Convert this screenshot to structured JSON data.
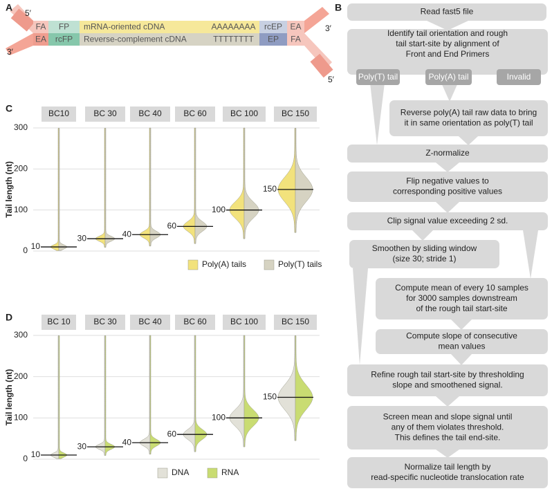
{
  "panel_a": {
    "label": "A",
    "ends": [
      "5′",
      "3′",
      "3′",
      "5′"
    ],
    "strands": [
      {
        "segments": [
          "FA",
          "FP",
          "mRNA-oriented cDNA",
          "AAAAAAAA",
          "rcEP",
          "EA"
        ]
      },
      {
        "segments": [
          "EA",
          "rcFP",
          "Reverse-complement cDNA",
          "TTTTTTTT",
          "EP",
          "FA"
        ]
      }
    ]
  },
  "panel_b": {
    "label": "B",
    "steps": [
      {
        "lines": [
          "Read fast5 file"
        ]
      },
      {
        "lines": [
          "Identify tail orientation and rough",
          "tail start-site by alignment of",
          "Front and End Primers"
        ]
      },
      {
        "lines": [
          "Reverse poly(A) tail raw data to bring",
          "it in same orientation as poly(T) tail"
        ]
      },
      {
        "lines": [
          "Z-normalize"
        ]
      },
      {
        "lines": [
          "Flip negative values to",
          "corresponding positive values"
        ]
      },
      {
        "lines": [
          "Clip signal value exceeding 2 sd."
        ]
      },
      {
        "lines": [
          "Smoothen by sliding window",
          "(size 30; stride 1)"
        ]
      },
      {
        "lines": [
          "Compute mean of every 10 samples",
          "for 3000 samples downstream",
          "of the rough tail start-site"
        ]
      },
      {
        "lines": [
          "Compute slope of consecutive",
          "mean values"
        ]
      },
      {
        "lines": [
          "Refine rough tail start-site by thresholding",
          "slope and smoothened signal."
        ]
      },
      {
        "lines": [
          "Screen mean and slope signal until",
          "any of them violates threshold.",
          "This defines the tail end-site."
        ]
      },
      {
        "lines": [
          "Normalize tail length by",
          "read-specific nucleotide translocation rate"
        ]
      }
    ],
    "branches": [
      "Poly(T) tail",
      "Poly(A) tail",
      "Invalid"
    ]
  },
  "chart_data": [
    {
      "type": "violin",
      "label": "C",
      "y_label": "Tail length (nt)",
      "facets": [
        "BC10",
        "BC 30",
        "BC 40",
        "BC 60",
        "BC 100",
        "BC 150"
      ],
      "series": [
        {
          "name": "Poly(A) tails",
          "color": "#f2e27c"
        },
        {
          "name": "Poly(T) tails",
          "color": "#d6d3c2"
        }
      ],
      "medians": [
        10,
        30,
        40,
        60,
        100,
        150
      ],
      "ylim": [
        0,
        300
      ],
      "yticks": [
        0,
        100,
        200,
        300
      ]
    },
    {
      "type": "violin",
      "label": "D",
      "y_label": "Tail length (nt)",
      "facets": [
        "BC 10",
        "BC 30",
        "BC 40",
        "BC 60",
        "BC 100",
        "BC 150"
      ],
      "series": [
        {
          "name": "DNA",
          "color": "#e2e1d8"
        },
        {
          "name": "RNA",
          "color": "#c9dc72"
        }
      ],
      "medians": [
        10,
        30,
        40,
        60,
        100,
        150
      ],
      "ylim": [
        0,
        300
      ],
      "yticks": [
        0,
        100,
        200,
        300
      ]
    }
  ]
}
